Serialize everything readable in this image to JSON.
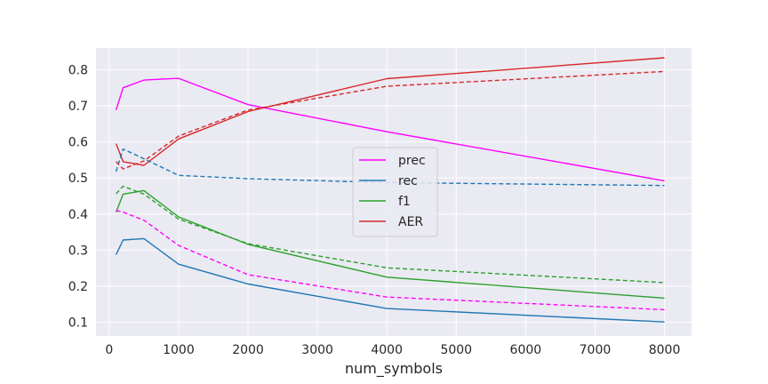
{
  "chart_data": {
    "type": "line",
    "title": "",
    "xlabel": "num_symbols",
    "ylabel": "",
    "xlim": [
      -190,
      8390
    ],
    "ylim": [
      0.062,
      0.86
    ],
    "xticks": [
      0,
      1000,
      2000,
      3000,
      4000,
      5000,
      6000,
      7000,
      8000
    ],
    "yticks": [
      0.1,
      0.2,
      0.3,
      0.4,
      0.5,
      0.6,
      0.7,
      0.8
    ],
    "grid": true,
    "background": "#eaeaf2",
    "legend_position": "center",
    "x": [
      100,
      200,
      500,
      1000,
      2000,
      4000,
      8000
    ],
    "series": [
      {
        "name": "prec",
        "color": "#ff00ff",
        "dash": "solid",
        "in_legend": true,
        "values": [
          0.688,
          0.75,
          0.771,
          0.776,
          0.703,
          0.628,
          0.492
        ]
      },
      {
        "name": "rec",
        "color": "#1f77b4",
        "dash": "solid",
        "in_legend": true,
        "values": [
          0.287,
          0.328,
          0.332,
          0.261,
          0.206,
          0.138,
          0.101
        ]
      },
      {
        "name": "f1",
        "color": "#2ca02c",
        "dash": "solid",
        "in_legend": true,
        "values": [
          0.405,
          0.455,
          0.465,
          0.392,
          0.316,
          0.225,
          0.167
        ]
      },
      {
        "name": "AER",
        "color": "#d62728",
        "dash": "solid",
        "in_legend": true,
        "values": [
          0.595,
          0.545,
          0.535,
          0.608,
          0.684,
          0.775,
          0.833
        ]
      },
      {
        "color": "#ff00ff",
        "dash": "dashed",
        "in_legend": false,
        "values": [
          0.41,
          0.405,
          0.383,
          0.313,
          0.232,
          0.17,
          0.135
        ]
      },
      {
        "color": "#1f77b4",
        "dash": "dashed",
        "in_legend": false,
        "values": [
          0.518,
          0.58,
          0.553,
          0.507,
          0.498,
          0.487,
          0.479
        ]
      },
      {
        "color": "#2ca02c",
        "dash": "dashed",
        "in_legend": false,
        "values": [
          0.456,
          0.477,
          0.455,
          0.386,
          0.318,
          0.251,
          0.21
        ]
      },
      {
        "color": "#d62728",
        "dash": "dashed",
        "in_legend": false,
        "values": [
          0.545,
          0.525,
          0.547,
          0.616,
          0.688,
          0.754,
          0.795
        ]
      }
    ]
  }
}
